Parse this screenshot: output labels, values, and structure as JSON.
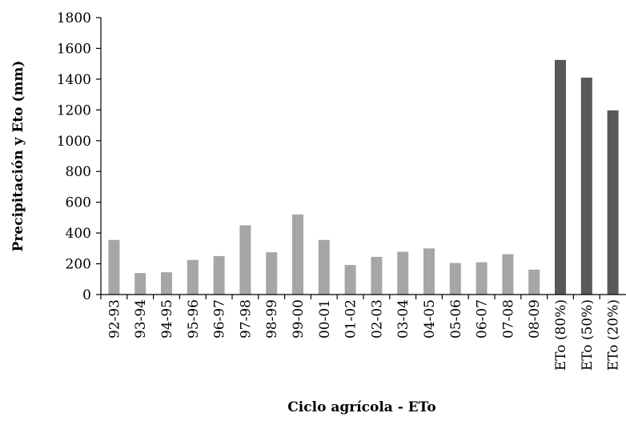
{
  "chart_data": {
    "type": "bar",
    "categories": [
      "92-93",
      "93-94",
      "94-95",
      "95-96",
      "96-97",
      "97-98",
      "98-99",
      "99-00",
      "00-01",
      "01-02",
      "02-03",
      "03-04",
      "04-05",
      "05-06",
      "06-07",
      "07-08",
      "08-09",
      "ETo (80%)",
      "ETo (50%)",
      "ETo (20%)"
    ],
    "values": [
      355,
      140,
      145,
      225,
      250,
      450,
      275,
      520,
      355,
      192,
      245,
      278,
      300,
      205,
      210,
      262,
      162,
      1525,
      1410,
      1197
    ],
    "bar_colors": [
      "#a6a6a6",
      "#a6a6a6",
      "#a6a6a6",
      "#a6a6a6",
      "#a6a6a6",
      "#a6a6a6",
      "#a6a6a6",
      "#a6a6a6",
      "#a6a6a6",
      "#a6a6a6",
      "#a6a6a6",
      "#a6a6a6",
      "#a6a6a6",
      "#a6a6a6",
      "#a6a6a6",
      "#a6a6a6",
      "#a6a6a6",
      "#595959",
      "#595959",
      "#595959"
    ],
    "xlabel": "Ciclo agrícola - ETo",
    "ylabel": "Precipitación y Eto (mm)",
    "ylim": [
      0,
      1800
    ],
    "yticks": [
      0,
      200,
      400,
      600,
      800,
      1000,
      1200,
      1400,
      1600,
      1800
    ],
    "grid": false,
    "legend": "none"
  }
}
